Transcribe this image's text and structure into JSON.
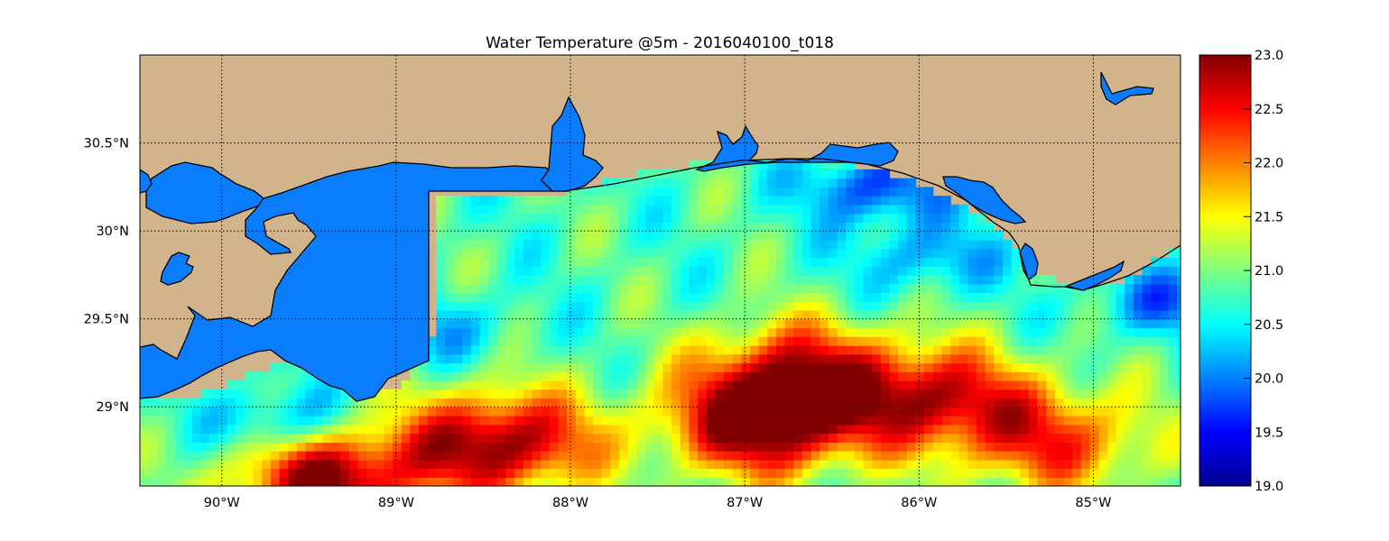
{
  "title": "Water Temperature @5m - 2016040100_t018",
  "chart_data": {
    "type": "heatmap",
    "title": "Water Temperature @5m - 2016040100_t018",
    "variable": "water temperature",
    "depth": "5m",
    "colormap": "jet",
    "land_color": "#d2b48c",
    "inland_water_color": "#0a7dff",
    "grid": true,
    "colorbar_position": "right",
    "colorbar": {
      "min": 19.0,
      "max": 23.0,
      "tick_labels": [
        "23.0",
        "22.5",
        "22.0",
        "21.5",
        "21.0",
        "20.5",
        "20.0",
        "19.5",
        "19.0"
      ],
      "tick_values": [
        23.0,
        22.5,
        22.0,
        21.5,
        21.0,
        20.5,
        20.0,
        19.5,
        19.0
      ]
    },
    "lon_range": [
      -90.47,
      -84.5
    ],
    "lat_range": [
      28.55,
      31.0
    ],
    "x_ticks": [
      {
        "value": -90,
        "label": "90°W"
      },
      {
        "value": -89,
        "label": "89°W"
      },
      {
        "value": -88,
        "label": "88°W"
      },
      {
        "value": -87,
        "label": "87°W"
      },
      {
        "value": -86,
        "label": "86°W"
      },
      {
        "value": -85,
        "label": "85°W"
      }
    ],
    "y_ticks": [
      {
        "value": 30.5,
        "label": "30.5°N"
      },
      {
        "value": 30.0,
        "label": "30°N"
      },
      {
        "value": 29.5,
        "label": "29.5°N"
      },
      {
        "value": 29.0,
        "label": "29°N"
      }
    ],
    "warm_features": [
      {
        "lon": -86.9,
        "lat": 28.9,
        "temp": 23.0
      },
      {
        "lon": -88.4,
        "lat": 28.8,
        "temp": 23.0
      },
      {
        "lon": -89.4,
        "lat": 28.6,
        "temp": 23.0
      },
      {
        "lon": -86.7,
        "lat": 29.2,
        "temp": 22.4
      },
      {
        "lon": -85.9,
        "lat": 29.05,
        "temp": 22.6
      },
      {
        "lon": -85.2,
        "lat": 28.8,
        "temp": 22.2
      }
    ],
    "cool_features": [
      {
        "lon": -86.25,
        "lat": 30.25,
        "temp": 19.7
      },
      {
        "lon": -85.95,
        "lat": 29.85,
        "temp": 20.1
      },
      {
        "lon": -89.65,
        "lat": 28.9,
        "temp": 19.8
      },
      {
        "lon": -84.6,
        "lat": 29.6,
        "temp": 20.0
      },
      {
        "lon": -88.7,
        "lat": 29.45,
        "temp": 20.3
      }
    ]
  }
}
